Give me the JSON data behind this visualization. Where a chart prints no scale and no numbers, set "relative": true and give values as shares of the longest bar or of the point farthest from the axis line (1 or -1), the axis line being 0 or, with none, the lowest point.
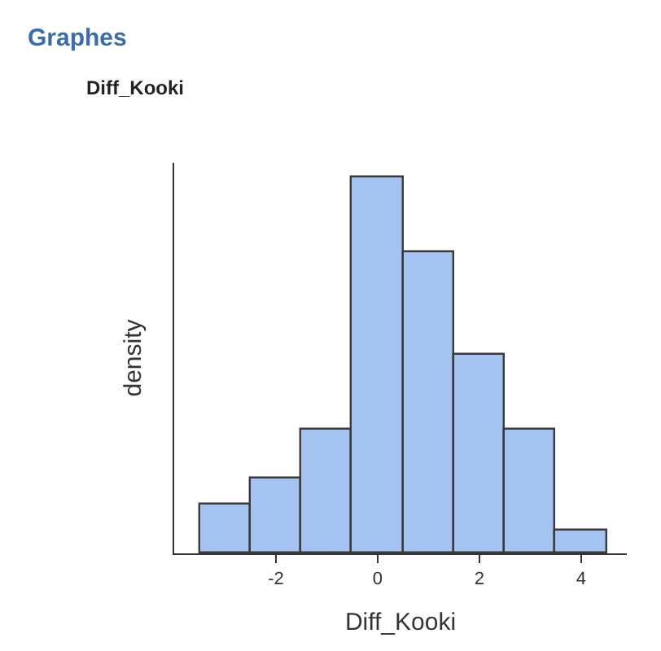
{
  "chart_data": {
    "type": "bar",
    "title": "Graphes",
    "subtitle": "Diff_Kooki",
    "xlabel": "Diff_Kooki",
    "ylabel": "density",
    "relative": true,
    "x": [
      -3,
      -2,
      -1,
      0,
      1,
      2,
      3,
      4
    ],
    "values": [
      0.13,
      0.2,
      0.33,
      1,
      0.8,
      0.53,
      0.33,
      0.06
    ],
    "color": "#a4c3f0",
    "xlim": [
      -4,
      4.9
    ],
    "xticks": [
      -2,
      0,
      2,
      4
    ],
    "tick_labels": "x",
    "legend": false
  }
}
